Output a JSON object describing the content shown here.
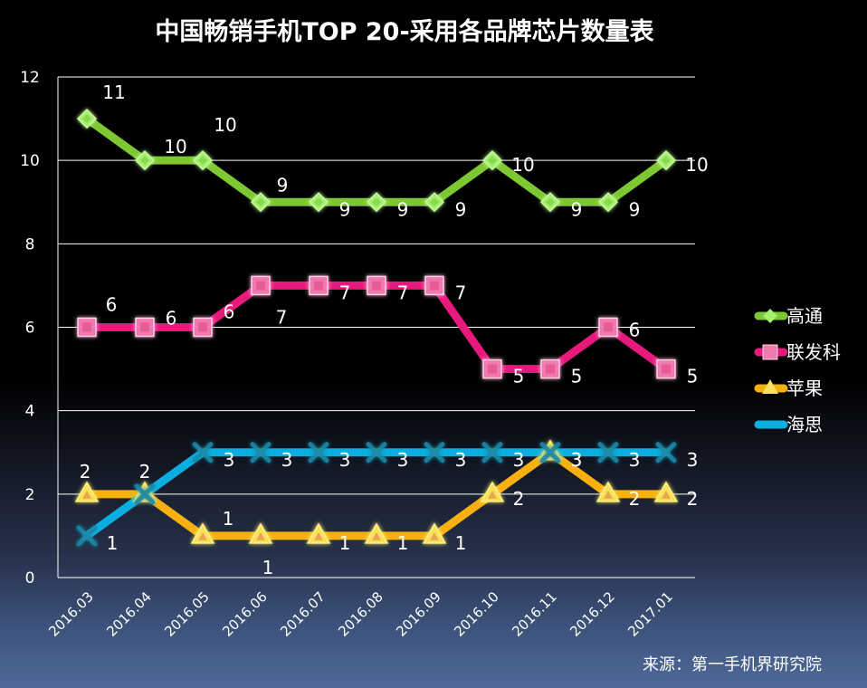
{
  "chart_data": {
    "type": "line",
    "title": "中国畅销手机TOP 20-采用各品牌芯片数量表",
    "xlabel": "",
    "ylabel": "",
    "categories": [
      "2016.03",
      "2016.04",
      "2016.05",
      "2016.06",
      "2016.07",
      "2016.08",
      "2016.09",
      "2016.10",
      "2016.11",
      "2016.12",
      "2017.01"
    ],
    "ylim": [
      0,
      12
    ],
    "yticks": [
      0,
      2,
      4,
      6,
      8,
      10,
      12
    ],
    "grid": true,
    "legend_position": "right",
    "series": [
      {
        "name": "高通",
        "color": "#7dc832",
        "marker": "diamond",
        "marker_color": "#a6f070",
        "values": [
          11,
          10,
          10,
          9,
          9,
          9,
          9,
          10,
          9,
          9,
          10
        ]
      },
      {
        "name": "联发科",
        "color": "#e8197c",
        "marker": "square",
        "marker_color": "#f07ab0",
        "values": [
          6,
          6,
          6,
          7,
          7,
          7,
          7,
          5,
          5,
          6,
          5
        ]
      },
      {
        "name": "苹果",
        "color": "#f8b010",
        "marker": "triangle",
        "marker_color": "#f8e060",
        "values": [
          2,
          2,
          1,
          1,
          1,
          1,
          1,
          2,
          3,
          2,
          2
        ]
      },
      {
        "name": "海思",
        "color": "#0aaee0",
        "marker": "x",
        "marker_color": "#1a8aa8",
        "values": [
          1,
          2,
          3,
          3,
          3,
          3,
          3,
          3,
          3,
          3,
          3
        ]
      }
    ],
    "annotations": [
      "来源：第一手机界研究院"
    ]
  },
  "source": "来源：第一手机界研究院"
}
